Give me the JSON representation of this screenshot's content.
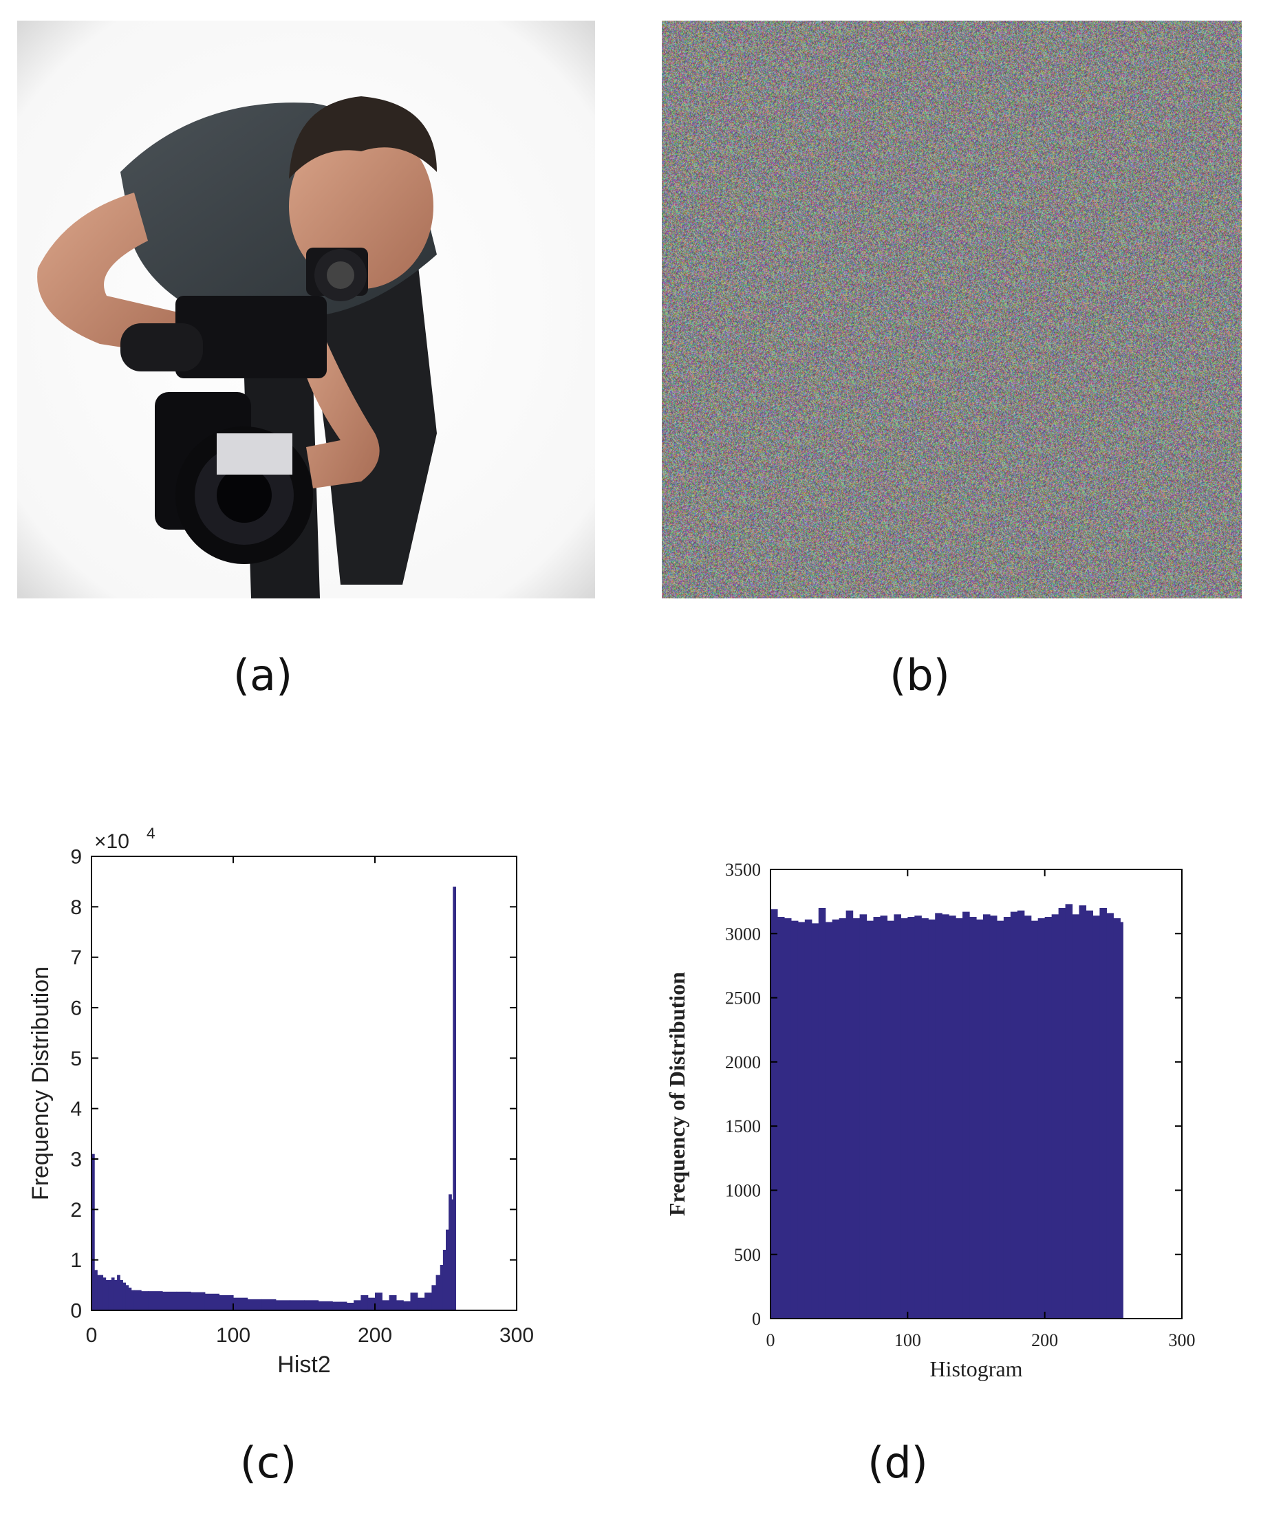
{
  "captions": {
    "a": "(a)",
    "b": "(b)",
    "c": "(c)",
    "d": "(d)"
  },
  "colors": {
    "bar": "#332a85",
    "axis": "#000000",
    "photo_bg": "#f4f4f4"
  },
  "photo": {
    "subject": "cameraman-photo"
  },
  "noise": {
    "description": "encrypted-noise-image"
  },
  "chart_data": [
    {
      "panel": "c",
      "type": "bar",
      "xlabel": "Hist2",
      "ylabel": "Frequency Distribution",
      "exponent_label": "×10",
      "exponent_power": "4",
      "xlim": [
        0,
        300
      ],
      "ylim": [
        0,
        9
      ],
      "y_multiplier": 10000,
      "xticks": [
        0,
        100,
        200,
        300
      ],
      "yticks": [
        0,
        1,
        2,
        3,
        4,
        5,
        6,
        7,
        8,
        9
      ],
      "bins_x": [
        0,
        2,
        4,
        6,
        8,
        10,
        12,
        14,
        16,
        18,
        20,
        22,
        24,
        26,
        28,
        30,
        35,
        40,
        50,
        60,
        70,
        80,
        90,
        100,
        110,
        120,
        130,
        140,
        150,
        160,
        170,
        180,
        185,
        190,
        195,
        200,
        205,
        210,
        215,
        220,
        225,
        230,
        235,
        240,
        243,
        246,
        248,
        250,
        252,
        254,
        255
      ],
      "values": [
        3.1,
        0.8,
        0.7,
        0.7,
        0.65,
        0.6,
        0.6,
        0.65,
        0.6,
        0.7,
        0.6,
        0.55,
        0.5,
        0.45,
        0.4,
        0.4,
        0.38,
        0.38,
        0.37,
        0.37,
        0.36,
        0.33,
        0.3,
        0.25,
        0.22,
        0.22,
        0.2,
        0.2,
        0.2,
        0.18,
        0.17,
        0.15,
        0.2,
        0.3,
        0.25,
        0.35,
        0.2,
        0.3,
        0.2,
        0.18,
        0.35,
        0.25,
        0.35,
        0.5,
        0.7,
        0.9,
        1.2,
        1.6,
        2.3,
        2.2,
        8.4
      ]
    },
    {
      "panel": "d",
      "type": "bar",
      "xlabel": "Histogram",
      "ylabel": "Frequency of Distribution",
      "xlim": [
        0,
        300
      ],
      "ylim": [
        0,
        3500
      ],
      "xticks": [
        0,
        100,
        200,
        300
      ],
      "yticks": [
        0,
        500,
        1000,
        1500,
        2000,
        2500,
        3000,
        3500
      ],
      "bins_x": [
        0,
        5,
        10,
        15,
        20,
        25,
        30,
        35,
        40,
        45,
        50,
        55,
        60,
        65,
        70,
        75,
        80,
        85,
        90,
        95,
        100,
        105,
        110,
        115,
        120,
        125,
        130,
        135,
        140,
        145,
        150,
        155,
        160,
        165,
        170,
        175,
        180,
        185,
        190,
        195,
        200,
        205,
        210,
        215,
        220,
        225,
        230,
        235,
        240,
        245,
        250,
        255
      ],
      "values": [
        3190,
        3130,
        3120,
        3100,
        3090,
        3110,
        3080,
        3200,
        3090,
        3110,
        3120,
        3180,
        3120,
        3150,
        3100,
        3130,
        3140,
        3100,
        3150,
        3120,
        3130,
        3140,
        3120,
        3110,
        3160,
        3150,
        3140,
        3120,
        3170,
        3130,
        3110,
        3150,
        3140,
        3100,
        3130,
        3170,
        3180,
        3140,
        3100,
        3120,
        3130,
        3150,
        3200,
        3230,
        3150,
        3220,
        3180,
        3140,
        3200,
        3160,
        3120,
        3090
      ]
    }
  ]
}
